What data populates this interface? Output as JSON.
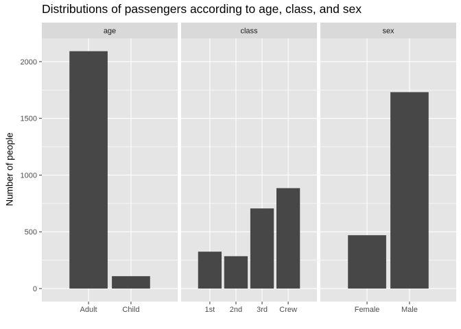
{
  "chart_data": {
    "type": "bar",
    "title": "Distributions of passengers according to age, class, and sex",
    "xlabel": "",
    "ylabel": "Number of people",
    "ylim": [
      -115,
      2205
    ],
    "yticks": [
      0,
      500,
      1000,
      1500,
      2000
    ],
    "ytick_labels": [
      "0",
      "500",
      "1000",
      "1500",
      "2000"
    ],
    "grid": true,
    "facets": [
      {
        "strip": "age",
        "categories": [
          "Adult",
          "Child"
        ],
        "values": [
          2092,
          109
        ]
      },
      {
        "strip": "class",
        "categories": [
          "1st",
          "2nd",
          "3rd",
          "Crew"
        ],
        "values": [
          325,
          285,
          706,
          885
        ]
      },
      {
        "strip": "sex",
        "categories": [
          "Female",
          "Male"
        ],
        "values": [
          470,
          1731
        ]
      }
    ],
    "colors": {
      "bar": "#474747",
      "panel_background": "#e5e5e5",
      "strip_background": "#d9d9d9",
      "grid": "#ffffff",
      "axis_text": "#4d4d4d",
      "strip_text": "#1a1a1a"
    }
  }
}
